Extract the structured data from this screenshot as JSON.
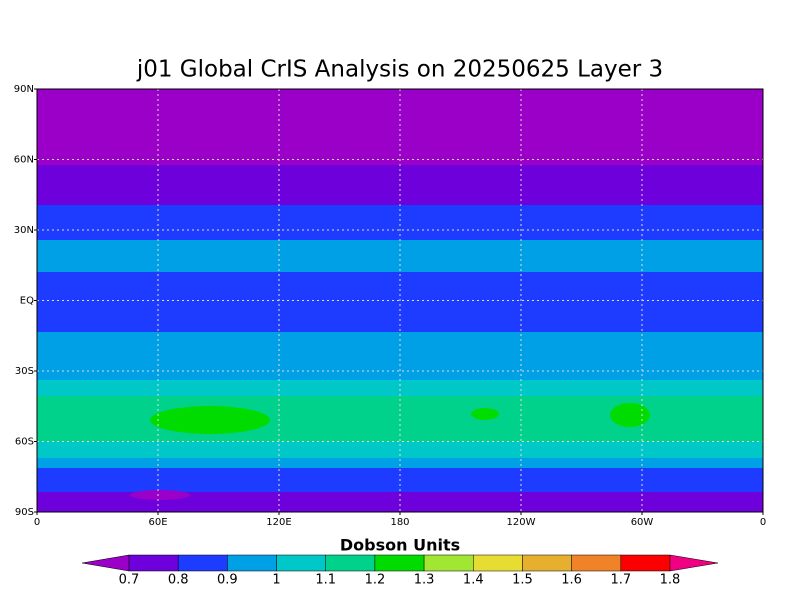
{
  "map": {
    "title": "j01 Global CrIS Analysis on 20250625 Layer 3",
    "xlim": [
      0,
      360
    ],
    "ylim": [
      -90,
      90
    ],
    "xticks": [
      0,
      {
        "value": 60,
        "label": "60E"
      },
      {
        "value": 120,
        "label": "120E"
      },
      180,
      {
        "value": 240,
        "label": "120W"
      },
      {
        "value": 300,
        "label": "60W"
      },
      {
        "value": 360,
        "label": "0"
      }
    ],
    "yticks": [
      {
        "value": -90,
        "label": "90S"
      },
      {
        "value": -60,
        "label": "60S"
      },
      {
        "value": -30,
        "label": "30S"
      },
      {
        "value": 0,
        "label": "EQ"
      },
      {
        "value": 30,
        "label": "30N"
      },
      {
        "value": 60,
        "label": "60N"
      },
      {
        "value": 90,
        "label": "90N"
      }
    ],
    "grid": true,
    "colorbar": {
      "title": "Dobson Units",
      "levels": [
        0.7,
        0.8,
        0.9,
        1,
        1.1,
        1.2,
        1.3,
        1.4,
        1.5,
        1.6,
        1.7,
        1.8
      ],
      "colors": [
        "#9a00c8",
        "#6e00dc",
        "#1e3cff",
        "#00a0e6",
        "#00c8c8",
        "#00d28c",
        "#00dc00",
        "#a0e632",
        "#e6dc32",
        "#e6af2d",
        "#f08228",
        "#fa0000",
        "#f00082"
      ]
    }
  }
}
